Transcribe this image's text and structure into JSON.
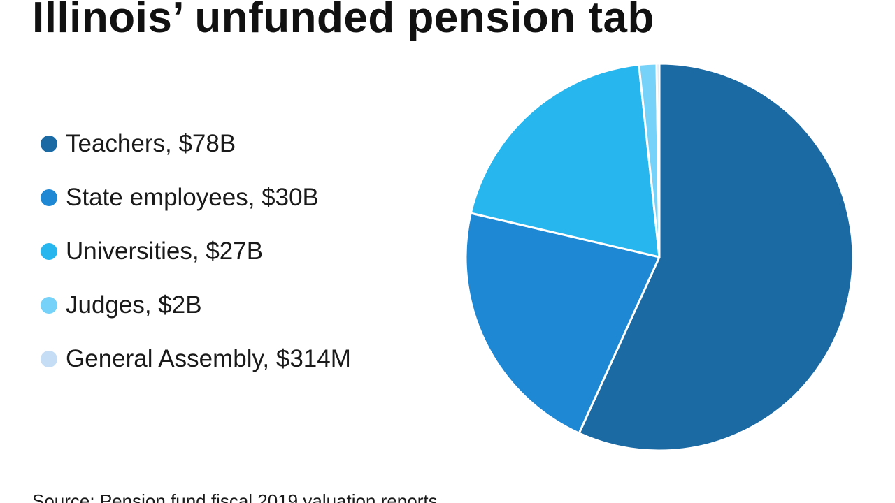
{
  "chart_data": {
    "type": "pie",
    "title": "Illinois’ unfunded pension tab",
    "unit": "$B",
    "categories": [
      "Teachers",
      "State employees",
      "Universities",
      "Judges",
      "General Assembly"
    ],
    "values": [
      78,
      30,
      27,
      2,
      0.314
    ],
    "colors": [
      "#1c6aa3",
      "#1e88d4",
      "#27b6ee",
      "#76d2f8",
      "#c6ddf6"
    ],
    "legend": {
      "placement": "left",
      "items": [
        {
          "label": "Teachers, $78B",
          "color": "#1c6aa3"
        },
        {
          "label": "State employees, $30B",
          "color": "#1e88d4"
        },
        {
          "label": "Universities, $27B",
          "color": "#27b6ee"
        },
        {
          "label": "Judges, $2B",
          "color": "#76d2f8"
        },
        {
          "label": "General Assembly, $314M",
          "color": "#c6ddf6"
        }
      ]
    },
    "start_angle": "12 o'clock",
    "direction": "clockwise",
    "source": "Source: Pension fund fiscal 2019 valuation reports"
  }
}
